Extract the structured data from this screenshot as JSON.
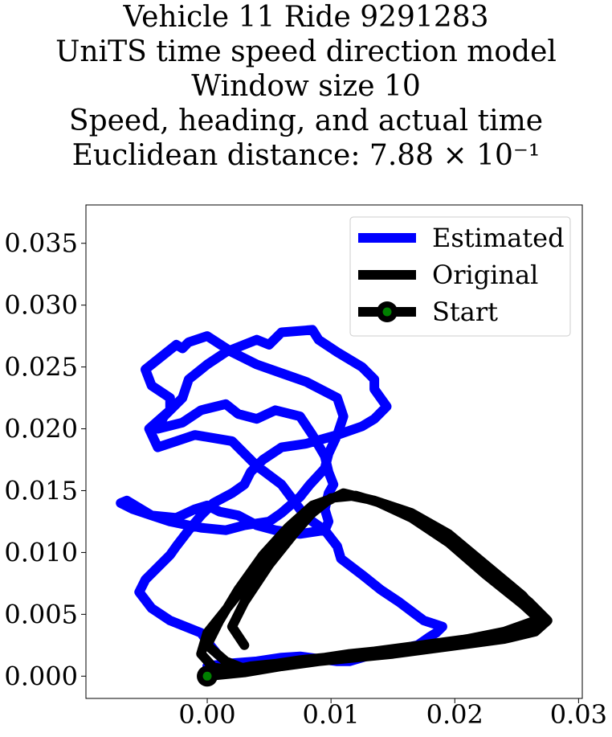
{
  "chart_data": {
    "type": "line",
    "title_lines": [
      "Vehicle 11 Ride 9291283",
      "UniTS time speed direction model",
      "Window size 10",
      "Speed, heading, and actual time",
      "Euclidean distance: 7.88 × 10⁻¹"
    ],
    "xlabel": "",
    "ylabel": "",
    "xlim": [
      -0.0098,
      0.0303
    ],
    "ylim": [
      -0.0018,
      0.0381
    ],
    "x_ticks": [
      0.0,
      0.01,
      0.02,
      0.03
    ],
    "x_tick_labels": [
      "0.00",
      "0.01",
      "0.02",
      "0.03"
    ],
    "y_ticks": [
      0.0,
      0.005,
      0.01,
      0.015,
      0.02,
      0.025,
      0.03,
      0.035
    ],
    "y_tick_labels": [
      "0.000",
      "0.005",
      "0.010",
      "0.015",
      "0.020",
      "0.025",
      "0.030",
      "0.035"
    ],
    "grid": false,
    "legend_position": "top-right",
    "legend": [
      {
        "label": "Estimated",
        "color": "#0000ff"
      },
      {
        "label": "Original",
        "color": "#000000"
      },
      {
        "label": "Start",
        "color": "#000000",
        "marker_face": "#008000"
      }
    ],
    "series": [
      {
        "name": "Estimated",
        "color": "#0000ff",
        "x": [
          0.0,
          0.0015,
          0.004,
          0.006,
          0.0075,
          0.009,
          0.0105,
          0.0115,
          0.0135,
          0.0155,
          0.017,
          0.018,
          0.0185,
          0.019,
          0.0175,
          0.0155,
          0.014,
          0.0125,
          0.0108,
          0.0105,
          0.0095,
          0.0085,
          0.0075,
          0.006,
          0.004,
          0.002,
          -0.001,
          -0.0025,
          -0.004,
          -0.0047,
          -0.003,
          -0.003,
          -0.0045,
          -0.005,
          -0.0035,
          -0.0025,
          -0.002,
          -0.0015,
          0.0,
          0.002,
          0.004,
          0.006,
          0.008,
          0.0105,
          0.011,
          0.0105,
          0.0098,
          0.0095,
          0.0083,
          0.0075,
          0.006,
          0.005,
          0.003,
          0.0015,
          -0.0005,
          -0.0015,
          -0.003,
          -0.0045,
          -0.006,
          -0.007,
          -0.0065,
          -0.0045,
          -0.0025,
          -0.001,
          0.0,
          0.001,
          0.0025,
          0.004,
          0.0055,
          0.0075,
          0.0095,
          0.0098,
          0.0095,
          0.0098,
          0.0102,
          0.0098,
          0.0095,
          0.0085,
          0.0075,
          0.0055,
          0.004,
          0.0025,
          0.0015,
          -0.0005,
          -0.002,
          -0.004,
          -0.0035,
          -0.002,
          -0.0015,
          0.0,
          0.0015,
          0.004,
          0.005,
          0.006,
          0.0085,
          0.009,
          0.0105,
          0.0125,
          0.0135,
          0.0135,
          0.0145,
          0.0135,
          0.0125,
          0.0105,
          0.008,
          0.006,
          0.0045,
          0.0035,
          0.003,
          0.002,
          0.0005,
          -0.0005,
          -0.0015,
          -0.0025,
          -0.003,
          -0.004,
          -0.005,
          -0.0055,
          -0.0045,
          -0.003,
          -0.0005,
          0.0,
          0.0008
        ],
        "y": [
          0.0008,
          0.001,
          0.0012,
          0.0015,
          0.0016,
          0.0014,
          0.0012,
          0.0012,
          0.0018,
          0.0022,
          0.0025,
          0.0032,
          0.0035,
          0.004,
          0.0045,
          0.006,
          0.007,
          0.0082,
          0.0095,
          0.0105,
          0.0118,
          0.0125,
          0.0135,
          0.0155,
          0.017,
          0.019,
          0.0195,
          0.019,
          0.0185,
          0.02,
          0.0215,
          0.0225,
          0.0235,
          0.0248,
          0.026,
          0.0268,
          0.0265,
          0.027,
          0.0275,
          0.0262,
          0.0252,
          0.0245,
          0.0238,
          0.0225,
          0.021,
          0.0195,
          0.018,
          0.0168,
          0.0155,
          0.0145,
          0.0132,
          0.0125,
          0.0122,
          0.0118,
          0.012,
          0.0122,
          0.0125,
          0.013,
          0.0135,
          0.014,
          0.0142,
          0.013,
          0.0128,
          0.0135,
          0.0138,
          0.0133,
          0.013,
          0.0122,
          0.0118,
          0.0115,
          0.0118,
          0.0125,
          0.0135,
          0.0148,
          0.0155,
          0.0165,
          0.0178,
          0.0195,
          0.021,
          0.0215,
          0.0208,
          0.0212,
          0.022,
          0.0215,
          0.0205,
          0.02,
          0.021,
          0.0225,
          0.024,
          0.0252,
          0.0262,
          0.0272,
          0.0268,
          0.0278,
          0.028,
          0.0272,
          0.0262,
          0.025,
          0.024,
          0.0232,
          0.0218,
          0.0208,
          0.0202,
          0.0195,
          0.0188,
          0.0185,
          0.0175,
          0.0165,
          0.0155,
          0.0148,
          0.014,
          0.013,
          0.0118,
          0.0105,
          0.0098,
          0.0088,
          0.0078,
          0.0068,
          0.0055,
          0.0045,
          0.0035,
          0.0028,
          0.0018
        ]
      },
      {
        "name": "Original",
        "color": "#000000",
        "x": [
          0.0,
          0.003,
          0.006,
          0.009,
          0.012,
          0.015,
          0.018,
          0.021,
          0.024,
          0.0265,
          0.0275,
          0.026,
          0.023,
          0.02,
          0.017,
          0.014,
          0.012,
          0.01,
          0.008,
          0.006,
          0.004,
          0.002,
          0.0,
          -0.0005,
          0.0005,
          0.002,
          0.0035,
          0.0055,
          0.0075,
          0.0095,
          0.0115,
          0.0135,
          0.0165,
          0.0195,
          0.0225,
          0.0255,
          0.027,
          0.0255,
          0.0225,
          0.0195,
          0.0165,
          0.0135,
          0.011,
          0.0085,
          0.0065,
          0.0045,
          0.0025,
          0.001,
          0.0,
          0.0015,
          0.003,
          0.006,
          0.009,
          0.012,
          0.015,
          0.018,
          0.021,
          0.024,
          0.0268,
          0.0255,
          0.0225,
          0.0195,
          0.0165,
          0.0135,
          0.011,
          0.009,
          0.007,
          0.005,
          0.003,
          0.002,
          0.003
        ],
        "y": [
          0.0,
          0.0003,
          0.0008,
          0.0012,
          0.0015,
          0.0018,
          0.0022,
          0.0026,
          0.003,
          0.0036,
          0.0045,
          0.006,
          0.0085,
          0.011,
          0.0128,
          0.014,
          0.0146,
          0.0144,
          0.0128,
          0.0108,
          0.0085,
          0.006,
          0.0035,
          0.0018,
          0.0007,
          0.0005,
          0.0008,
          0.001,
          0.0013,
          0.0015,
          0.0018,
          0.002,
          0.0024,
          0.0028,
          0.0032,
          0.0038,
          0.0046,
          0.0065,
          0.009,
          0.0115,
          0.0132,
          0.0142,
          0.0147,
          0.0138,
          0.012,
          0.0098,
          0.007,
          0.0045,
          0.0025,
          0.0012,
          0.0006,
          0.0009,
          0.0012,
          0.0016,
          0.002,
          0.0025,
          0.003,
          0.0036,
          0.0046,
          0.0058,
          0.0082,
          0.0108,
          0.0128,
          0.0142,
          0.0148,
          0.0138,
          0.0115,
          0.009,
          0.006,
          0.004,
          0.0025
        ]
      }
    ],
    "start_point": {
      "name": "Start",
      "x": 0.0,
      "y": 0.0,
      "edge_color": "#000000",
      "face_color": "#008000"
    }
  }
}
